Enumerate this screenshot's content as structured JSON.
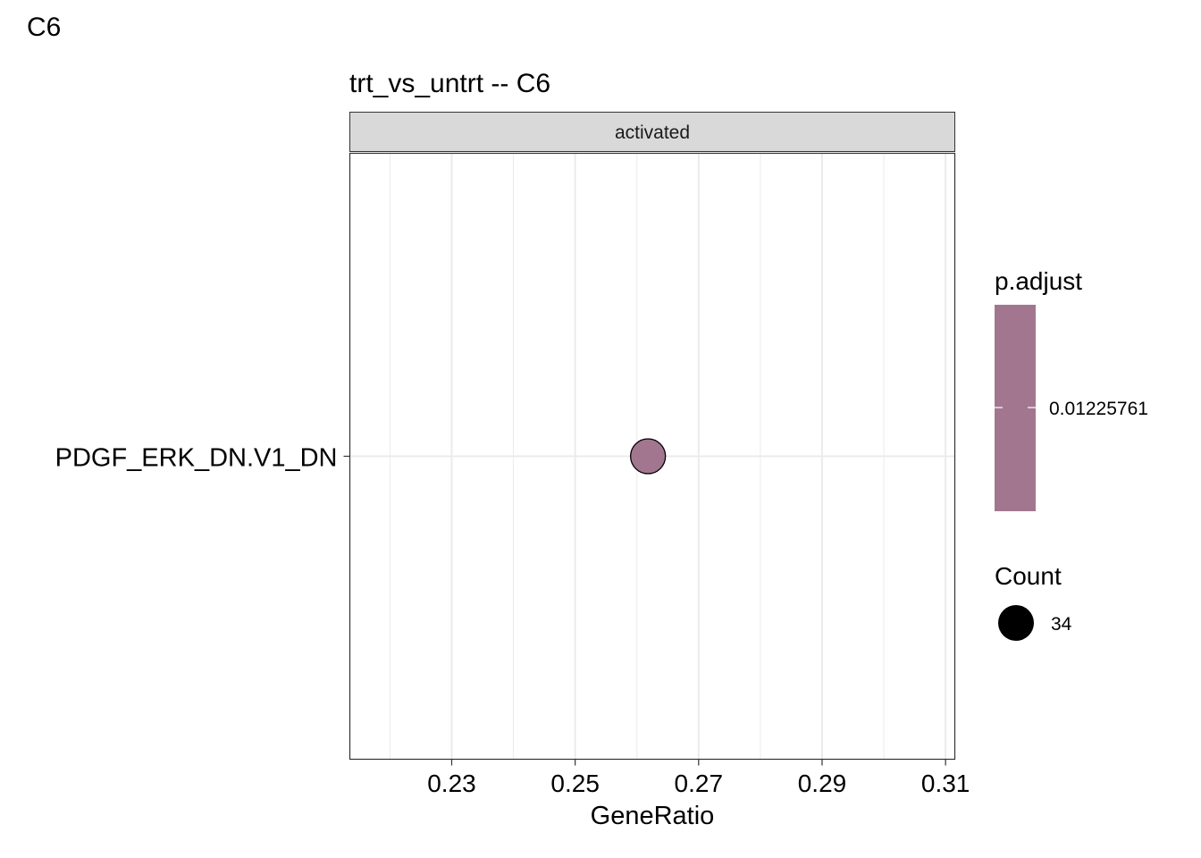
{
  "page_tag": "C6",
  "chart_data": {
    "type": "scatter",
    "title": "trt_vs_untrt -- C6",
    "facet": "activated",
    "xlabel": "GeneRatio",
    "ylabel": "",
    "x_ticks": [
      0.23,
      0.25,
      0.27,
      0.29,
      0.31
    ],
    "xlim": [
      0.2135,
      0.3115
    ],
    "categories": [
      "PDGF_ERK_DN.V1_DN"
    ],
    "points": [
      {
        "category": "PDGF_ERK_DN.V1_DN",
        "x": 0.2618,
        "count": 34,
        "p_adjust": 0.01225761
      }
    ],
    "color_legend": {
      "title": "p.adjust",
      "value_label": "0.01225761",
      "color": "#a3768f"
    },
    "size_legend": {
      "title": "Count",
      "value_label": "34"
    },
    "colors": {
      "point_fill": "#a3768f",
      "strip_fill": "#d9d9d9",
      "grid": "#ebebeb",
      "panel_border": "#333333"
    },
    "grid": true,
    "legend_position": "right"
  }
}
